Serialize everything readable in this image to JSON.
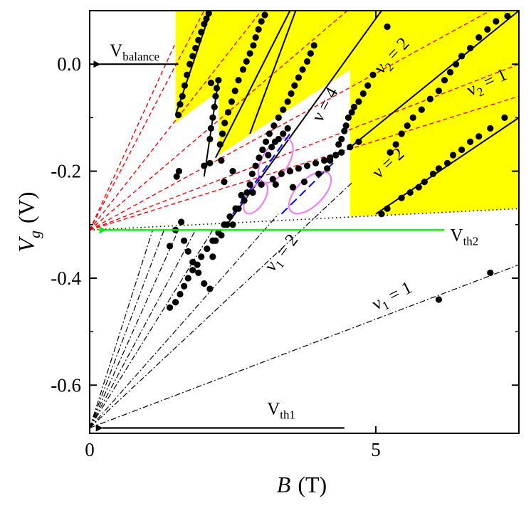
{
  "chart_data": {
    "type": "scatter",
    "xlabel": "B",
    "xunit": "(T)",
    "ylabel": "V",
    "ylabel_sub": "g",
    "yunit": "(V)",
    "xlim": [
      0,
      7.5
    ],
    "ylim": [
      -0.69,
      0.1
    ],
    "x_ticks": [
      {
        "value": 0,
        "label": "0"
      },
      {
        "value": 5,
        "label": "5"
      }
    ],
    "y_ticks": [
      {
        "value": 0.0,
        "label": "0.0"
      },
      {
        "value": -0.2,
        "label": "-0.2"
      },
      {
        "value": -0.4,
        "label": "-0.4"
      },
      {
        "value": -0.6,
        "label": "-0.6"
      }
    ],
    "colors": {
      "yellow_region": "#ffff00",
      "red_dashed": "#ff0000",
      "green_arrow": "#00ee00",
      "blue_dashed": "#0000ff",
      "ellipse": "#ee82ee",
      "points": "#000000"
    },
    "yellow_regions": [
      [
        [
          1.5,
          -0.11
        ],
        [
          1.5,
          0.1
        ],
        [
          2.25,
          0.1
        ],
        [
          2.25,
          -0.05
        ]
      ],
      [
        [
          2.25,
          -0.17
        ],
        [
          2.25,
          0.1
        ],
        [
          4.55,
          0.1
        ],
        [
          4.55,
          -0.01
        ]
      ],
      [
        [
          4.55,
          -0.285
        ],
        [
          4.55,
          0.1
        ],
        [
          7.5,
          0.1
        ],
        [
          7.5,
          -0.27
        ]
      ]
    ],
    "solid_fit_lines": [
      [
        [
          1.5,
          -0.095
        ],
        [
          2.1,
          0.095
        ]
      ],
      [
        [
          2.0,
          -0.21
        ],
        [
          2.25,
          -0.03
        ]
      ],
      [
        [
          2.2,
          -0.175
        ],
        [
          3.5,
          0.1
        ]
      ],
      [
        [
          2.8,
          -0.13
        ],
        [
          3.6,
          0.1
        ]
      ],
      [
        [
          2.4,
          -0.3
        ],
        [
          5.1,
          0.1
        ]
      ],
      [
        [
          4.5,
          -0.16
        ],
        [
          7.5,
          0.1
        ]
      ],
      [
        [
          5.0,
          -0.28
        ],
        [
          7.5,
          -0.1
        ]
      ]
    ],
    "red_dashed_lines": [
      [
        [
          0,
          -0.31
        ],
        [
          1.5,
          0.04
        ]
      ],
      [
        [
          0,
          -0.31
        ],
        [
          2.0,
          0.1
        ]
      ],
      [
        [
          0,
          -0.31
        ],
        [
          3.0,
          0.1
        ]
      ],
      [
        [
          0,
          -0.31
        ],
        [
          4.5,
          0.1
        ]
      ],
      [
        [
          0,
          -0.31
        ],
        [
          7.0,
          0.1
        ]
      ],
      [
        [
          0,
          -0.31
        ],
        [
          7.5,
          0.0
        ]
      ],
      [
        [
          0,
          -0.31
        ],
        [
          7.5,
          -0.06
        ]
      ]
    ],
    "dash_dot_lines": [
      [
        [
          0,
          -0.68
        ],
        [
          1.1,
          -0.31
        ]
      ],
      [
        [
          0,
          -0.68
        ],
        [
          1.3,
          -0.31
        ]
      ],
      [
        [
          0,
          -0.68
        ],
        [
          1.55,
          -0.31
        ]
      ],
      [
        [
          0,
          -0.68
        ],
        [
          1.85,
          -0.31
        ]
      ],
      [
        [
          0,
          -0.68
        ],
        [
          2.15,
          -0.31
        ]
      ],
      [
        [
          0,
          -0.68
        ],
        [
          3.3,
          -0.28
        ]
      ],
      [
        [
          0,
          -0.68
        ],
        [
          4.6,
          -0.22
        ]
      ],
      [
        [
          0,
          -0.68
        ],
        [
          7.5,
          -0.375
        ]
      ]
    ],
    "dotted_line": [
      [
        0,
        -0.31
      ],
      [
        7.5,
        -0.27
      ]
    ],
    "blue_dashed_lines": [
      [
        [
          2.5,
          -0.28
        ],
        [
          3.5,
          -0.13
        ]
      ],
      [
        [
          3.35,
          -0.28
        ],
        [
          4.3,
          -0.18
        ]
      ]
    ],
    "ellipses": [
      {
        "cx": 3.25,
        "cy": -0.18,
        "rx": 0.7,
        "ry": 0.045,
        "angle_deg": -58
      },
      {
        "cx": 2.9,
        "cy": -0.25,
        "rx": 0.5,
        "ry": 0.03,
        "angle_deg": -58
      },
      {
        "cx": 3.85,
        "cy": -0.24,
        "rx": 0.75,
        "ry": 0.045,
        "angle_deg": -45
      }
    ],
    "series": [
      {
        "x": [
          1.55,
          1.58,
          1.62,
          1.66,
          1.7,
          1.75,
          1.8,
          1.85,
          1.9,
          1.95,
          2.0,
          2.04,
          2.08,
          2.12,
          2.25,
          2.22,
          2.2,
          2.18,
          2.15,
          2.12,
          2.1,
          2.28,
          2.32,
          2.36,
          2.42,
          2.48,
          2.54,
          2.6,
          2.68,
          2.74,
          2.8,
          2.86,
          2.9,
          2.95,
          3.0,
          3.06,
          3.12,
          3.18,
          3.24,
          3.3,
          3.38,
          3.46,
          2.5,
          2.6,
          2.75,
          2.8,
          2.84,
          2.9,
          2.96,
          3.02,
          3.08,
          3.14,
          3.22,
          3.3,
          3.38,
          3.46,
          3.52,
          3.58,
          3.65,
          3.72,
          3.8,
          3.86,
          3.92,
          1.52,
          1.56,
          2.0,
          2.1,
          2.3,
          2.35,
          2.5,
          3.25,
          3.5,
          3.55,
          3.75,
          4.0,
          4.15,
          4.2,
          4.3,
          4.35,
          4.4,
          4.45,
          4.48,
          4.52,
          4.58,
          4.62,
          4.7,
          4.78,
          4.86,
          4.95,
          5.2,
          5.25,
          5.35,
          5.45,
          5.55,
          5.65,
          5.8,
          5.95,
          6.1,
          6.2,
          6.3,
          6.4,
          6.5,
          6.65,
          6.8,
          6.95,
          7.1,
          7.3,
          5.1,
          5.2,
          5.45,
          5.6,
          5.75,
          5.85,
          6.0,
          6.1,
          6.25,
          6.35,
          6.5,
          6.65,
          6.8,
          7.0,
          7.25,
          1.4,
          1.5,
          1.6,
          1.65,
          1.72,
          1.8,
          1.9,
          2.0,
          2.1,
          2.15,
          2.2,
          2.3,
          2.4,
          2.55,
          2.65,
          1.4,
          1.5,
          1.58,
          1.65,
          1.72,
          1.8,
          1.88,
          1.95,
          2.05,
          2.15,
          2.25,
          2.35,
          2.45,
          2.55,
          2.7,
          2.85,
          3.0,
          3.2,
          3.35,
          3.5,
          3.65,
          3.8,
          3.95,
          4.1,
          4.2,
          4.3,
          4.4,
          4.55,
          4.7,
          6.1,
          7.0
        ],
        "y": [
          -0.095,
          -0.075,
          -0.06,
          -0.04,
          -0.02,
          0.0,
          0.015,
          0.03,
          0.045,
          0.06,
          0.075,
          0.085,
          0.095,
          -0.035,
          -0.03,
          -0.045,
          -0.06,
          -0.08,
          -0.1,
          -0.12,
          -0.14,
          -0.15,
          -0.13,
          -0.11,
          -0.09,
          -0.07,
          -0.05,
          -0.03,
          -0.01,
          0.005,
          0.02,
          0.035,
          0.05,
          0.065,
          0.08,
          0.092,
          -0.17,
          -0.155,
          -0.145,
          -0.14,
          -0.13,
          -0.12,
          -0.3,
          -0.27,
          -0.24,
          -0.225,
          -0.205,
          -0.19,
          -0.175,
          -0.16,
          -0.145,
          -0.13,
          -0.115,
          -0.1,
          -0.085,
          -0.07,
          -0.055,
          -0.04,
          -0.025,
          -0.01,
          0.005,
          0.02,
          0.035,
          -0.21,
          -0.2,
          -0.19,
          -0.185,
          -0.18,
          -0.22,
          -0.2,
          -0.225,
          -0.2,
          -0.23,
          -0.22,
          -0.205,
          -0.195,
          -0.18,
          -0.17,
          -0.15,
          -0.14,
          -0.125,
          -0.115,
          -0.1,
          -0.09,
          -0.08,
          -0.07,
          -0.055,
          -0.04,
          -0.02,
          0.07,
          -0.165,
          -0.15,
          -0.13,
          -0.115,
          -0.1,
          -0.085,
          -0.065,
          -0.05,
          -0.03,
          -0.015,
          0.0,
          0.015,
          0.03,
          0.05,
          0.065,
          0.08,
          0.09,
          -0.28,
          -0.27,
          -0.25,
          -0.24,
          -0.23,
          -0.22,
          -0.205,
          -0.195,
          -0.185,
          -0.17,
          -0.16,
          -0.145,
          -0.135,
          -0.12,
          -0.1,
          -0.34,
          -0.31,
          -0.295,
          -0.33,
          -0.35,
          -0.37,
          -0.39,
          -0.41,
          -0.42,
          -0.36,
          -0.33,
          -0.32,
          -0.3,
          -0.27,
          -0.245,
          -0.455,
          -0.445,
          -0.43,
          -0.415,
          -0.4,
          -0.385,
          -0.375,
          -0.36,
          -0.345,
          -0.33,
          -0.315,
          -0.3,
          -0.285,
          -0.27,
          -0.255,
          -0.24,
          -0.225,
          -0.215,
          -0.205,
          -0.2,
          -0.195,
          -0.19,
          -0.185,
          -0.18,
          -0.175,
          -0.17,
          -0.165,
          -0.155,
          -0.145,
          -0.44,
          -0.39
        ]
      }
    ],
    "annotations": [
      {
        "text": "V",
        "sub": "balance",
        "x": 0.35,
        "y": 0.015
      },
      {
        "text": "V",
        "sub": "th2",
        "x": 6.3,
        "y": -0.33
      },
      {
        "text": "V",
        "sub": "th1",
        "x": 3.1,
        "y": -0.655
      },
      {
        "text": "ν = 4",
        "x": 4.05,
        "y": -0.11,
        "rotate": -62
      },
      {
        "text": "ν = 2",
        "x": 5.05,
        "y": -0.215,
        "rotate": -42
      },
      {
        "text": "ν",
        "sub": "2",
        "tail": " = 2",
        "x": 5.1,
        "y": -0.02,
        "rotate": -47
      },
      {
        "text": "ν",
        "sub": "2",
        "tail": " = 1",
        "x": 6.65,
        "y": -0.06,
        "rotate": -25
      },
      {
        "text": "ν",
        "sub": "1",
        "tail": " = 2",
        "x": 3.2,
        "y": -0.39,
        "rotate": -52
      },
      {
        "text": "ν",
        "sub": "1",
        "tail": " = 1",
        "x": 5.0,
        "y": -0.46,
        "rotate": -27
      }
    ],
    "arrows": [
      {
        "from": [
          1.55,
          0.0
        ],
        "to": [
          0.18,
          0.0
        ],
        "color": "#000000"
      },
      {
        "from": [
          6.2,
          -0.31
        ],
        "to": [
          0.28,
          -0.31
        ],
        "color": "#00ee00"
      },
      {
        "from": [
          4.45,
          -0.68
        ],
        "to": [
          0.22,
          -0.68
        ],
        "color": "#000000"
      }
    ]
  }
}
